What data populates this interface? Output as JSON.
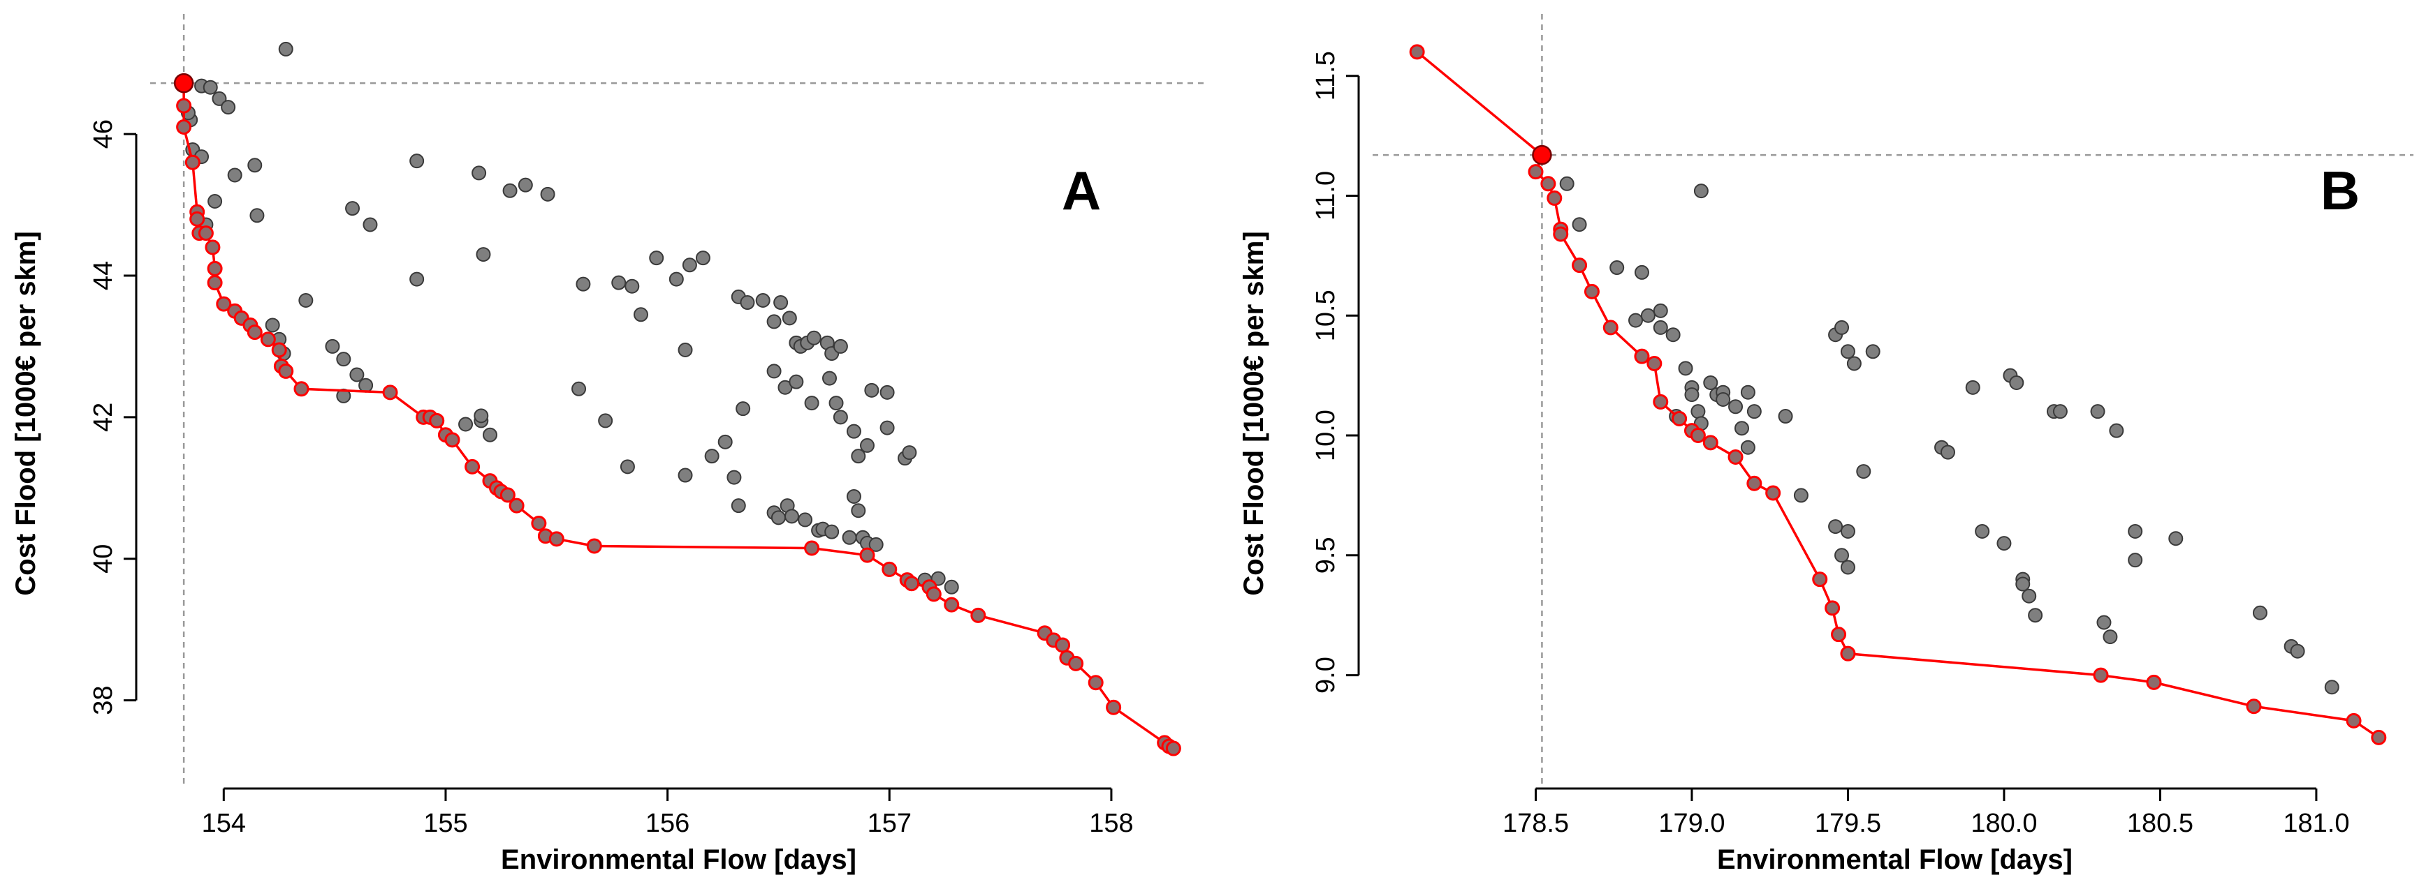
{
  "chart_data": [
    {
      "type": "scatter",
      "panel_label": "A",
      "xlabel": "Environmental Flow [days]",
      "ylabel": "Cost Flood [1000€ per skm]",
      "xlim": [
        153.7,
        158.4
      ],
      "ylim": [
        37.0,
        47.5
      ],
      "xticks": [
        154,
        155,
        156,
        157,
        158
      ],
      "yticks": [
        38,
        40,
        42,
        44,
        46
      ],
      "reference_lines": {
        "x": 153.82,
        "y": 46.72
      },
      "highlight_point": {
        "x": 153.82,
        "y": 46.72,
        "color": "#ff0000"
      },
      "colors": {
        "points": "#7f7f7f",
        "pareto": "#ff0000",
        "reference": "#999999"
      },
      "series": [
        {
          "type": "scatter",
          "points": [
            [
              154.28,
              47.2
            ],
            [
              153.9,
              46.68
            ],
            [
              153.94,
              46.66
            ],
            [
              153.98,
              46.5
            ],
            [
              154.02,
              46.38
            ],
            [
              153.85,
              46.2
            ],
            [
              153.84,
              46.3
            ],
            [
              153.86,
              45.78
            ],
            [
              153.9,
              45.68
            ],
            [
              153.96,
              45.05
            ],
            [
              154.05,
              45.42
            ],
            [
              154.14,
              45.56
            ],
            [
              154.15,
              44.85
            ],
            [
              153.92,
              44.72
            ],
            [
              154.37,
              43.65
            ],
            [
              154.58,
              44.95
            ],
            [
              154.66,
              44.72
            ],
            [
              154.87,
              45.62
            ],
            [
              155.15,
              45.45
            ],
            [
              155.29,
              45.2
            ],
            [
              155.36,
              45.28
            ],
            [
              155.46,
              45.15
            ],
            [
              155.17,
              44.3
            ],
            [
              154.87,
              43.95
            ],
            [
              154.22,
              43.3
            ],
            [
              154.25,
              43.1
            ],
            [
              154.27,
              42.9
            ],
            [
              154.49,
              43.0
            ],
            [
              154.54,
              42.82
            ],
            [
              154.6,
              42.6
            ],
            [
              154.64,
              42.45
            ],
            [
              154.54,
              42.3
            ],
            [
              155.09,
              41.9
            ],
            [
              155.16,
              41.95
            ],
            [
              155.2,
              41.75
            ],
            [
              155.16,
              42.02
            ],
            [
              155.6,
              42.4
            ],
            [
              155.62,
              43.88
            ],
            [
              155.72,
              41.95
            ],
            [
              155.78,
              43.9
            ],
            [
              155.84,
              43.85
            ],
            [
              155.82,
              41.3
            ],
            [
              155.88,
              43.45
            ],
            [
              155.95,
              44.25
            ],
            [
              156.04,
              43.95
            ],
            [
              156.1,
              44.15
            ],
            [
              156.16,
              44.25
            ],
            [
              156.08,
              42.95
            ],
            [
              156.08,
              41.18
            ],
            [
              156.2,
              41.45
            ],
            [
              156.26,
              41.65
            ],
            [
              156.32,
              43.7
            ],
            [
              156.36,
              43.62
            ],
            [
              156.43,
              43.65
            ],
            [
              156.48,
              43.35
            ],
            [
              156.51,
              43.62
            ],
            [
              156.55,
              43.4
            ],
            [
              156.58,
              43.05
            ],
            [
              156.6,
              43.0
            ],
            [
              156.63,
              43.05
            ],
            [
              156.66,
              43.12
            ],
            [
              156.72,
              43.05
            ],
            [
              156.74,
              42.9
            ],
            [
              156.78,
              43.0
            ],
            [
              156.48,
              42.65
            ],
            [
              156.53,
              42.42
            ],
            [
              156.58,
              42.5
            ],
            [
              156.65,
              42.2
            ],
            [
              156.73,
              42.55
            ],
            [
              156.76,
              42.2
            ],
            [
              156.78,
              42.0
            ],
            [
              156.84,
              41.8
            ],
            [
              156.86,
              41.45
            ],
            [
              156.9,
              41.6
            ],
            [
              156.92,
              42.38
            ],
            [
              156.99,
              42.35
            ],
            [
              156.99,
              41.85
            ],
            [
              157.07,
              41.42
            ],
            [
              157.09,
              41.5
            ],
            [
              156.34,
              42.12
            ],
            [
              156.3,
              41.15
            ],
            [
              156.32,
              40.75
            ],
            [
              156.48,
              40.65
            ],
            [
              156.5,
              40.58
            ],
            [
              156.54,
              40.75
            ],
            [
              156.56,
              40.6
            ],
            [
              156.62,
              40.55
            ],
            [
              156.68,
              40.4
            ],
            [
              156.7,
              40.42
            ],
            [
              156.74,
              40.38
            ],
            [
              156.82,
              40.3
            ],
            [
              156.84,
              40.88
            ],
            [
              156.86,
              40.68
            ],
            [
              156.88,
              40.3
            ],
            [
              156.9,
              40.22
            ],
            [
              156.94,
              40.2
            ],
            [
              157.16,
              39.7
            ],
            [
              157.22,
              39.72
            ],
            [
              157.28,
              39.6
            ]
          ]
        },
        {
          "type": "line",
          "points": [
            [
              153.82,
              46.72
            ],
            [
              153.82,
              46.4
            ],
            [
              153.82,
              46.1
            ],
            [
              153.86,
              45.6
            ],
            [
              153.88,
              44.9
            ],
            [
              153.88,
              44.8
            ],
            [
              153.89,
              44.6
            ],
            [
              153.92,
              44.6
            ],
            [
              153.95,
              44.4
            ],
            [
              153.96,
              44.1
            ],
            [
              153.96,
              43.9
            ],
            [
              154.0,
              43.6
            ],
            [
              154.05,
              43.5
            ],
            [
              154.08,
              43.4
            ],
            [
              154.12,
              43.3
            ],
            [
              154.14,
              43.2
            ],
            [
              154.2,
              43.1
            ],
            [
              154.25,
              42.95
            ],
            [
              154.26,
              42.72
            ],
            [
              154.28,
              42.65
            ],
            [
              154.35,
              42.4
            ],
            [
              154.75,
              42.35
            ],
            [
              154.9,
              42.0
            ],
            [
              154.93,
              42.0
            ],
            [
              154.96,
              41.95
            ],
            [
              155.0,
              41.75
            ],
            [
              155.03,
              41.68
            ],
            [
              155.12,
              41.3
            ],
            [
              155.2,
              41.1
            ],
            [
              155.23,
              41.0
            ],
            [
              155.25,
              40.95
            ],
            [
              155.28,
              40.9
            ],
            [
              155.32,
              40.75
            ],
            [
              155.42,
              40.5
            ],
            [
              155.45,
              40.32
            ],
            [
              155.5,
              40.28
            ],
            [
              155.67,
              40.18
            ],
            [
              156.65,
              40.15
            ],
            [
              156.9,
              40.05
            ],
            [
              157.0,
              39.85
            ],
            [
              157.08,
              39.7
            ],
            [
              157.1,
              39.65
            ],
            [
              157.18,
              39.6
            ],
            [
              157.2,
              39.5
            ],
            [
              157.28,
              39.35
            ],
            [
              157.4,
              39.2
            ],
            [
              157.7,
              38.95
            ],
            [
              157.74,
              38.85
            ],
            [
              157.78,
              38.78
            ],
            [
              157.8,
              38.6
            ],
            [
              157.84,
              38.52
            ],
            [
              157.93,
              38.25
            ],
            [
              158.01,
              37.9
            ],
            [
              158.24,
              37.4
            ],
            [
              158.26,
              37.35
            ],
            [
              158.28,
              37.32
            ]
          ]
        }
      ]
    },
    {
      "type": "scatter",
      "panel_label": "B",
      "xlabel": "Environmental Flow [days]",
      "ylabel": "Cost Flood [1000€ per skm]",
      "xlim": [
        178.0,
        181.3
      ],
      "ylim": [
        8.6,
        11.7
      ],
      "xticks": [
        178.5,
        179.0,
        179.5,
        180.0,
        180.5,
        181.0
      ],
      "yticks": [
        9.0,
        9.5,
        10.0,
        10.5,
        11.0,
        11.5
      ],
      "reference_lines": {
        "x": 178.52,
        "y": 11.17
      },
      "highlight_point": {
        "x": 178.52,
        "y": 11.17,
        "color": "#ff0000"
      },
      "colors": {
        "points": "#7f7f7f",
        "pareto": "#ff0000",
        "reference": "#999999"
      },
      "series": [
        {
          "type": "scatter",
          "points": [
            [
              178.6,
              11.05
            ],
            [
              178.64,
              10.88
            ],
            [
              178.76,
              10.7
            ],
            [
              178.82,
              10.48
            ],
            [
              178.84,
              10.68
            ],
            [
              178.86,
              10.5
            ],
            [
              178.9,
              10.52
            ],
            [
              178.9,
              10.45
            ],
            [
              178.94,
              10.42
            ],
            [
              178.95,
              10.08
            ],
            [
              178.98,
              10.28
            ],
            [
              179.0,
              10.2
            ],
            [
              179.0,
              10.17
            ],
            [
              179.02,
              10.1
            ],
            [
              179.03,
              10.05
            ],
            [
              179.03,
              11.02
            ],
            [
              179.06,
              10.22
            ],
            [
              179.08,
              10.17
            ],
            [
              179.1,
              10.18
            ],
            [
              179.1,
              10.15
            ],
            [
              179.14,
              10.12
            ],
            [
              179.16,
              10.03
            ],
            [
              179.18,
              10.18
            ],
            [
              179.18,
              9.95
            ],
            [
              179.2,
              10.1
            ],
            [
              179.3,
              10.08
            ],
            [
              179.35,
              9.75
            ],
            [
              179.46,
              10.42
            ],
            [
              179.48,
              10.45
            ],
            [
              179.5,
              10.35
            ],
            [
              179.52,
              10.3
            ],
            [
              179.58,
              10.35
            ],
            [
              179.55,
              9.85
            ],
            [
              179.46,
              9.62
            ],
            [
              179.5,
              9.6
            ],
            [
              179.48,
              9.5
            ],
            [
              179.5,
              9.45
            ],
            [
              179.8,
              9.95
            ],
            [
              179.82,
              9.93
            ],
            [
              179.9,
              10.2
            ],
            [
              179.93,
              9.6
            ],
            [
              180.0,
              9.55
            ],
            [
              180.02,
              10.25
            ],
            [
              180.04,
              10.22
            ],
            [
              180.06,
              9.4
            ],
            [
              180.06,
              9.38
            ],
            [
              180.08,
              9.33
            ],
            [
              180.1,
              9.25
            ],
            [
              180.16,
              10.1
            ],
            [
              180.18,
              10.1
            ],
            [
              180.3,
              10.1
            ],
            [
              180.36,
              10.02
            ],
            [
              180.42,
              9.6
            ],
            [
              180.42,
              9.48
            ],
            [
              180.55,
              9.57
            ],
            [
              180.82,
              9.26
            ],
            [
              180.92,
              9.12
            ],
            [
              180.94,
              9.1
            ],
            [
              181.05,
              8.95
            ],
            [
              180.32,
              9.22
            ],
            [
              180.34,
              9.16
            ]
          ]
        },
        {
          "type": "line",
          "points": [
            [
              178.12,
              11.6
            ],
            [
              178.52,
              11.17
            ],
            [
              178.5,
              11.1
            ],
            [
              178.54,
              11.05
            ],
            [
              178.56,
              10.99
            ],
            [
              178.58,
              10.86
            ],
            [
              178.58,
              10.84
            ],
            [
              178.64,
              10.71
            ],
            [
              178.68,
              10.6
            ],
            [
              178.74,
              10.45
            ],
            [
              178.84,
              10.33
            ],
            [
              178.88,
              10.3
            ],
            [
              178.9,
              10.14
            ],
            [
              178.96,
              10.07
            ],
            [
              179.0,
              10.02
            ],
            [
              179.02,
              10.0
            ],
            [
              179.06,
              9.97
            ],
            [
              179.14,
              9.91
            ],
            [
              179.2,
              9.8
            ],
            [
              179.26,
              9.76
            ],
            [
              179.41,
              9.4
            ],
            [
              179.45,
              9.28
            ],
            [
              179.47,
              9.17
            ],
            [
              179.5,
              9.09
            ],
            [
              180.31,
              9.0
            ],
            [
              180.48,
              8.97
            ],
            [
              180.8,
              8.87
            ],
            [
              181.12,
              8.81
            ],
            [
              181.2,
              8.74
            ]
          ]
        }
      ]
    }
  ]
}
